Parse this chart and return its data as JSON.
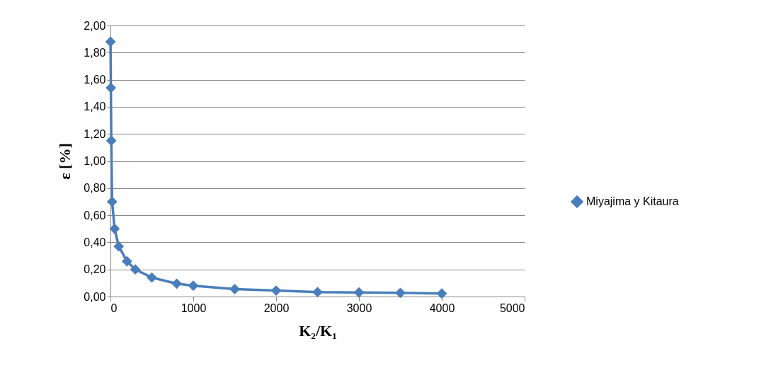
{
  "chart_data": {
    "type": "line",
    "xlabel": "K₂/K₁",
    "ylabel": "ε [%]",
    "x": [
      1,
      5,
      10,
      20,
      50,
      100,
      200,
      300,
      500,
      800,
      1000,
      1500,
      2000,
      2500,
      3000,
      3500,
      4000
    ],
    "series": [
      {
        "name": "Miyajima y Kitaura",
        "color": "#4a7ebb",
        "values": [
          1.88,
          1.54,
          1.15,
          0.7,
          0.5,
          0.37,
          0.26,
          0.2,
          0.14,
          0.095,
          0.08,
          0.055,
          0.044,
          0.033,
          0.03,
          0.027,
          0.022
        ]
      }
    ],
    "xlim": [
      0,
      5000
    ],
    "xticks": [
      0,
      1000,
      2000,
      3000,
      4000,
      5000
    ],
    "ylim": [
      0,
      2
    ],
    "yticks": [
      {
        "value": 0,
        "label": "0,00"
      },
      {
        "value": 0.2,
        "label": "0,20"
      },
      {
        "value": 0.4,
        "label": "0,40"
      },
      {
        "value": 0.6,
        "label": "0,60"
      },
      {
        "value": 0.8,
        "label": "0,80"
      },
      {
        "value": 1,
        "label": "1,00"
      },
      {
        "value": 1.2,
        "label": "1,20"
      },
      {
        "value": 1.4,
        "label": "1,40"
      },
      {
        "value": 1.6,
        "label": "1,60"
      },
      {
        "value": 1.8,
        "label": "1,80"
      },
      {
        "value": 2,
        "label": "2,00"
      }
    ],
    "grid": "y",
    "legend": "right",
    "marker": "diamond",
    "line_style": "solid"
  }
}
